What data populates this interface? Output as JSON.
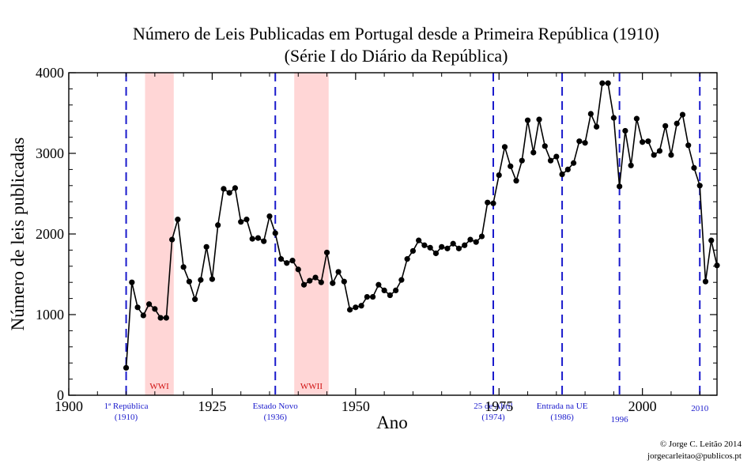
{
  "chart_data": {
    "type": "line",
    "title": "Número de Leis Publicadas em Portugal desde a Primeira República (1910)",
    "subtitle": "(Série I do Diário da República)",
    "xlabel": "Ano",
    "ylabel": "Número de leis publicadas",
    "xlim": [
      1900,
      2013
    ],
    "ylim": [
      0,
      4000
    ],
    "xticks": [
      1900,
      1925,
      1950,
      1975,
      2000
    ],
    "yticks": [
      0,
      1000,
      2000,
      3000,
      4000
    ],
    "grid": false,
    "line_color": "#000000",
    "marker": "circle",
    "x": [
      1910,
      1911,
      1912,
      1913,
      1914,
      1915,
      1916,
      1917,
      1918,
      1919,
      1920,
      1921,
      1922,
      1923,
      1924,
      1925,
      1926,
      1927,
      1928,
      1929,
      1930,
      1931,
      1932,
      1933,
      1934,
      1935,
      1936,
      1937,
      1938,
      1939,
      1940,
      1941,
      1942,
      1943,
      1944,
      1945,
      1946,
      1947,
      1948,
      1949,
      1950,
      1951,
      1952,
      1953,
      1954,
      1955,
      1956,
      1957,
      1958,
      1959,
      1960,
      1961,
      1962,
      1963,
      1964,
      1965,
      1966,
      1967,
      1968,
      1969,
      1970,
      1971,
      1972,
      1973,
      1974,
      1975,
      1976,
      1977,
      1978,
      1979,
      1980,
      1981,
      1982,
      1983,
      1984,
      1985,
      1986,
      1987,
      1988,
      1989,
      1990,
      1991,
      1992,
      1993,
      1994,
      1995,
      1996,
      1997,
      1998,
      1999,
      2000,
      2001,
      2002,
      2003,
      2004,
      2005,
      2006,
      2007,
      2008,
      2009,
      2010,
      2011,
      2012,
      2013
    ],
    "y": [
      340,
      1400,
      1090,
      990,
      1130,
      1070,
      960,
      960,
      1930,
      2180,
      1590,
      1410,
      1190,
      1430,
      1840,
      1440,
      2110,
      2560,
      2510,
      2570,
      2150,
      2180,
      1940,
      1950,
      1910,
      2220,
      2010,
      1690,
      1640,
      1670,
      1560,
      1370,
      1420,
      1460,
      1400,
      1770,
      1390,
      1530,
      1410,
      1060,
      1090,
      1110,
      1220,
      1220,
      1370,
      1300,
      1240,
      1300,
      1430,
      1690,
      1790,
      1920,
      1860,
      1830,
      1760,
      1840,
      1820,
      1880,
      1820,
      1860,
      1930,
      1900,
      1970,
      2390,
      2380,
      2730,
      3080,
      2840,
      2660,
      2910,
      3410,
      3010,
      3420,
      3090,
      2910,
      2960,
      2740,
      2800,
      2880,
      3150,
      3130,
      3490,
      3330,
      3870,
      3870,
      3440,
      2590,
      3280,
      2850,
      3430,
      3140,
      3150,
      2980,
      3030,
      3340,
      2980,
      3370,
      3480,
      3100,
      2820,
      2600,
      1410,
      1920,
      1610
    ]
  },
  "events": [
    {
      "year": 1910,
      "lines": [
        "1ª República",
        "(1910)"
      ]
    },
    {
      "year": 1936,
      "lines": [
        "Estado Novo",
        "(1936)"
      ]
    },
    {
      "year": 1974,
      "lines": [
        "25 de Abril",
        "(1974)"
      ]
    },
    {
      "year": 1986,
      "lines": [
        "Entrada na UE",
        "(1986)"
      ]
    },
    {
      "year": 1996,
      "lines": [
        "1996"
      ]
    },
    {
      "year": 2010,
      "lines": [
        "2010"
      ]
    }
  ],
  "wars": [
    {
      "label": "WWI",
      "start": 1913.3,
      "end": 1918.3
    },
    {
      "label": "WWII",
      "start": 1939.3,
      "end": 1945.3
    }
  ],
  "colors": {
    "event_line": "#1a1acc",
    "war_band": "#ffd6d6",
    "war_text": "#d01010"
  },
  "credits": [
    "© Jorge C. Leitão 2014",
    "jorgecarleitao@publicos.pt"
  ]
}
